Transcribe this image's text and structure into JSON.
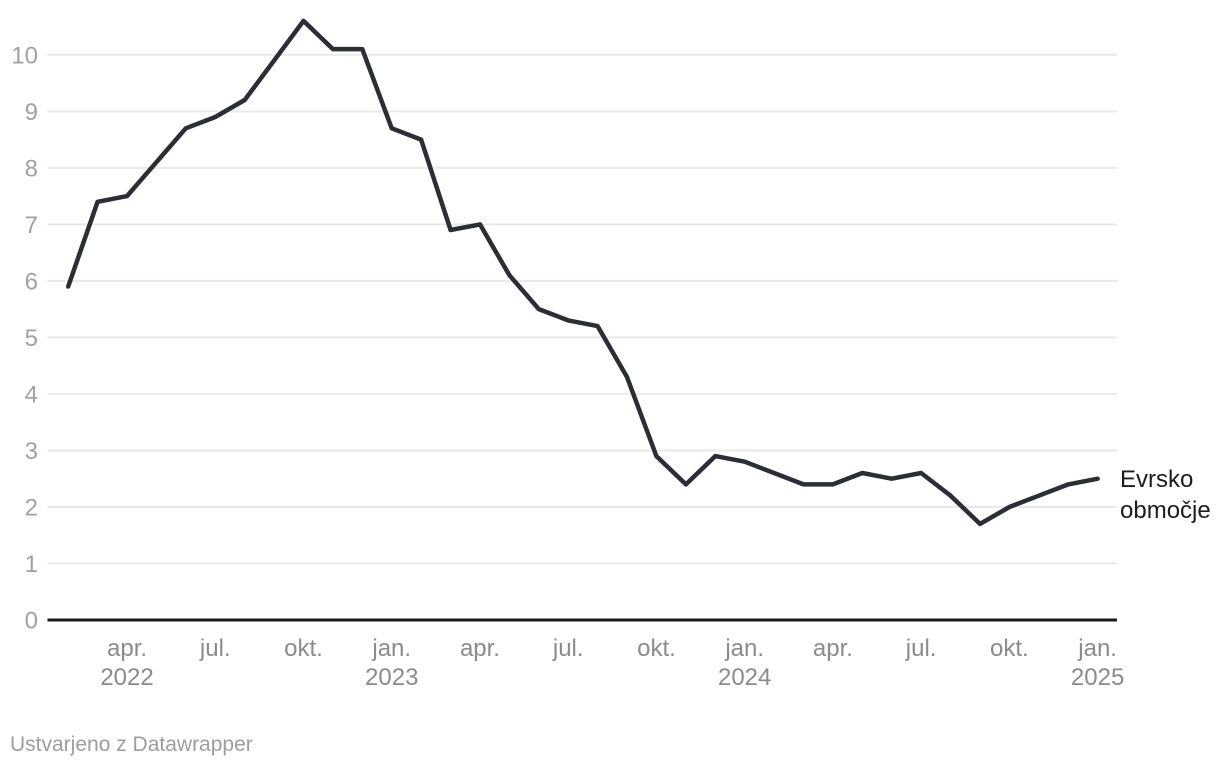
{
  "chart_data": {
    "type": "line",
    "title": "",
    "xlabel": "",
    "ylabel": "",
    "grid": true,
    "ylim": [
      0,
      10.9
    ],
    "y_ticks": [
      0,
      1,
      2,
      3,
      4,
      5,
      6,
      7,
      8,
      9,
      10
    ],
    "x": [
      "feb. 2022",
      "mar. 2022",
      "apr. 2022",
      "maj 2022",
      "jun. 2022",
      "jul. 2022",
      "avg. 2022",
      "sep. 2022",
      "okt. 2022",
      "nov. 2022",
      "dec. 2022",
      "jan. 2023",
      "feb. 2023",
      "mar. 2023",
      "apr. 2023",
      "maj 2023",
      "jun. 2023",
      "jul. 2023",
      "avg. 2023",
      "sep. 2023",
      "okt. 2023",
      "nov. 2023",
      "dec. 2023",
      "jan. 2024",
      "feb. 2024",
      "mar. 2024",
      "apr. 2024",
      "maj 2024",
      "jun. 2024",
      "jul. 2024",
      "avg. 2024",
      "sep. 2024",
      "okt. 2024",
      "nov. 2024",
      "dec. 2024",
      "jan. 2025"
    ],
    "x_ticks": [
      {
        "index": 2,
        "label": "apr.",
        "year": "2022"
      },
      {
        "index": 5,
        "label": "jul.",
        "year": ""
      },
      {
        "index": 8,
        "label": "okt.",
        "year": ""
      },
      {
        "index": 11,
        "label": "jan.",
        "year": "2023"
      },
      {
        "index": 14,
        "label": "apr.",
        "year": ""
      },
      {
        "index": 17,
        "label": "jul.",
        "year": ""
      },
      {
        "index": 20,
        "label": "okt.",
        "year": ""
      },
      {
        "index": 23,
        "label": "jan.",
        "year": "2024"
      },
      {
        "index": 26,
        "label": "apr.",
        "year": ""
      },
      {
        "index": 29,
        "label": "jul.",
        "year": ""
      },
      {
        "index": 32,
        "label": "okt.",
        "year": ""
      },
      {
        "index": 35,
        "label": "jan.",
        "year": "2025"
      }
    ],
    "series": [
      {
        "name": "Evrsko območje",
        "label_lines": [
          "Evrsko",
          "območje"
        ],
        "values": [
          5.9,
          7.4,
          7.5,
          8.1,
          8.7,
          8.9,
          9.2,
          9.9,
          10.6,
          10.1,
          10.1,
          8.7,
          8.5,
          6.9,
          7.0,
          6.1,
          5.5,
          5.3,
          5.2,
          4.3,
          2.9,
          2.4,
          2.9,
          2.8,
          2.6,
          2.4,
          2.4,
          2.6,
          2.5,
          2.6,
          2.2,
          1.7,
          2.0,
          2.2,
          2.4,
          2.5
        ]
      }
    ],
    "legend_position": "line-end-label",
    "colors": {
      "line": "#2b2e34",
      "grid": "#e9e9e9",
      "axis": "#1a1a1a",
      "y_tick_label": "#a1a1a1",
      "x_tick_label": "#8b8b8b",
      "series_label": "#1d1d1d",
      "attribution": "#9d9d9d"
    }
  },
  "footer": {
    "attribution": "Ustvarjeno z Datawrapper"
  }
}
